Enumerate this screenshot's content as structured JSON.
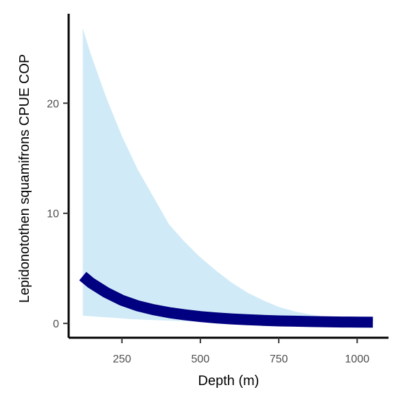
{
  "chart_data": {
    "type": "line",
    "xlabel": "Depth (m)",
    "ylabel": "Lepidonotothen squamifrons  CPUE COP",
    "xlim": [
      80,
      1100
    ],
    "ylim": [
      -1.3,
      28
    ],
    "x_ticks": [
      250,
      500,
      750,
      1000
    ],
    "x_tick_labels": [
      "250",
      "500",
      "750",
      "1000"
    ],
    "y_ticks": [
      0,
      10,
      20
    ],
    "y_tick_labels": [
      "0",
      "10",
      "20"
    ],
    "grid": false,
    "legend": "none",
    "colors": {
      "line": "#000080",
      "band": "#d0ebf7",
      "axis": "#000000"
    },
    "series": [
      {
        "x": [
          125,
          150,
          200,
          250,
          275,
          300,
          350,
          400,
          450,
          500,
          550,
          600,
          650,
          700,
          750,
          800,
          850,
          900,
          950,
          1000,
          1050
        ],
        "y": [
          4.3,
          3.7,
          2.8,
          2.1,
          1.85,
          1.6,
          1.25,
          0.98,
          0.78,
          0.62,
          0.5,
          0.41,
          0.34,
          0.28,
          0.23,
          0.2,
          0.17,
          0.15,
          0.13,
          0.12,
          0.11
        ],
        "lower": [
          0.7,
          0.65,
          0.55,
          0.45,
          0.4,
          0.36,
          0.3,
          0.25,
          0.2,
          0.17,
          0.14,
          0.12,
          0.1,
          0.08,
          0.07,
          0.06,
          0.05,
          0.05,
          0.04,
          0.04,
          0.04
        ],
        "upper": [
          26.8,
          24.5,
          20.5,
          17.0,
          15.5,
          14.0,
          11.5,
          9.0,
          7.4,
          6.0,
          4.8,
          3.7,
          2.8,
          2.1,
          1.5,
          1.1,
          0.8,
          0.6,
          0.5,
          0.4,
          0.35
        ]
      }
    ]
  }
}
